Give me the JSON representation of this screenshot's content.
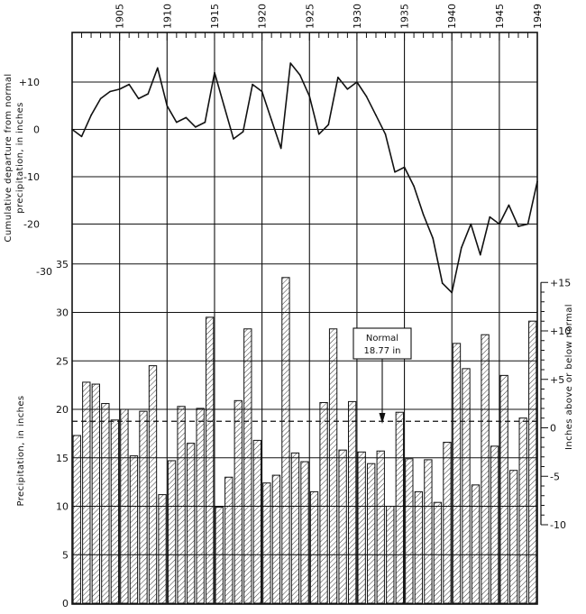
{
  "chart_data": [
    {
      "type": "line",
      "ylabel_lines": [
        "Cumulative departure from normal",
        "precipitation, in inches"
      ],
      "x_tick_labels": [
        "1905",
        "1910",
        "1915",
        "1920",
        "1925",
        "1930",
        "1935",
        "1940",
        "1945",
        "1949"
      ],
      "y_tick_labels": [
        "+10",
        "0",
        "-10",
        "-20",
        "-30"
      ],
      "xlim": [
        1900,
        1949
      ],
      "ylim": [
        -30,
        20
      ],
      "grid": true,
      "series": [
        {
          "x": [
            1900,
            1901,
            1902,
            1903,
            1904,
            1905,
            1906,
            1907,
            1908,
            1909,
            1910,
            1911,
            1912,
            1913,
            1914,
            1915,
            1916,
            1917,
            1918,
            1919,
            1920,
            1921,
            1922,
            1923,
            1924,
            1925,
            1926,
            1927,
            1928,
            1929,
            1930,
            1931,
            1932,
            1933,
            1934,
            1935,
            1936,
            1937,
            1938,
            1939,
            1940,
            1941,
            1942,
            1943,
            1944,
            1945,
            1946,
            1947,
            1948,
            1949
          ],
          "values": [
            0,
            -1.5,
            3,
            6.5,
            8,
            8.5,
            9.5,
            6.5,
            7.5,
            13,
            5,
            1.5,
            2.5,
            0.5,
            1.5,
            12,
            5,
            -2,
            -0.5,
            9.5,
            8,
            2,
            -4,
            14,
            11.5,
            7,
            -1,
            1,
            11,
            8.5,
            10,
            7,
            3,
            -1,
            -9,
            -8,
            -12,
            -18,
            -23,
            -32.5,
            -34.5,
            -25,
            -20,
            -26.5,
            -18.5,
            -20,
            -16,
            -20.5,
            -20,
            -11
          ]
        }
      ]
    },
    {
      "type": "bar",
      "ylabel": "Precipitation, in inches",
      "secondary_ylabel": "Inches above or below normal",
      "y_tick_labels": [
        "0",
        "5",
        "10",
        "15",
        "20",
        "25",
        "30",
        "35"
      ],
      "secondary_y_tick_labels": [
        "+15",
        "+10",
        "+5",
        "0",
        "-5",
        "-10"
      ],
      "ylim": [
        0,
        35
      ],
      "normal_label_lines": [
        "Normal",
        "18.77 in"
      ],
      "normal_value": 18.77,
      "grid": true,
      "categories": [
        1900,
        1901,
        1902,
        1903,
        1904,
        1905,
        1906,
        1907,
        1908,
        1909,
        1910,
        1911,
        1912,
        1913,
        1914,
        1915,
        1916,
        1917,
        1918,
        1919,
        1920,
        1921,
        1922,
        1923,
        1924,
        1925,
        1926,
        1927,
        1928,
        1929,
        1930,
        1931,
        1932,
        1933,
        1934,
        1935,
        1936,
        1937,
        1938,
        1939,
        1940,
        1941,
        1942,
        1943,
        1944,
        1945,
        1946,
        1947,
        1948,
        1949
      ],
      "values": [
        17.3,
        22.8,
        22.6,
        20.6,
        18.9,
        20.0,
        15.2,
        19.8,
        24.5,
        11.2,
        14.7,
        20.3,
        16.5,
        20.1,
        29.5,
        9.9,
        13.0,
        20.9,
        28.3,
        16.8,
        12.4,
        13.2,
        33.6,
        15.5,
        14.6,
        11.5,
        20.7,
        28.3,
        15.8,
        20.8,
        15.6,
        14.4,
        15.7,
        10.0,
        19.7,
        14.9,
        11.5,
        14.8,
        10.4,
        16.6,
        26.8,
        24.2,
        12.2,
        27.7,
        16.2,
        23.5,
        13.7,
        19.1,
        29.1,
        0
      ]
    }
  ],
  "colors": {
    "ink": "#111111",
    "background": "#ffffff",
    "hatch": "#222222"
  }
}
